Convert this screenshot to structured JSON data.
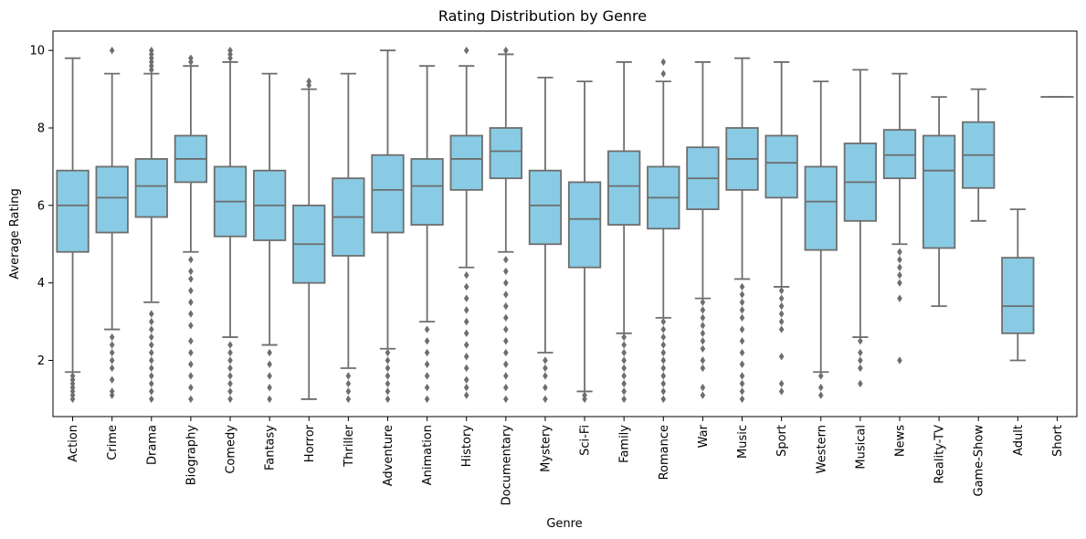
{
  "chart_data": {
    "type": "box",
    "title": "Rating Distribution by Genre",
    "xlabel": "Genre",
    "ylabel": "Average Rating",
    "ylim": [
      0.55,
      10.5
    ],
    "yticks": [
      2,
      4,
      6,
      8,
      10
    ],
    "grid": false,
    "box_color": "#89cbe4",
    "line_color": "#6e6e6e",
    "series": [
      {
        "category": "Action",
        "whisker_low": 1.7,
        "q1": 4.8,
        "median": 6.0,
        "q3": 6.9,
        "whisker_high": 9.8,
        "outliers": [
          1.0,
          1.1,
          1.2,
          1.3,
          1.4,
          1.5,
          1.6
        ]
      },
      {
        "category": "Crime",
        "whisker_low": 2.8,
        "q1": 5.3,
        "median": 6.2,
        "q3": 7.0,
        "whisker_high": 9.4,
        "outliers": [
          1.1,
          1.2,
          1.5,
          1.8,
          2.0,
          2.2,
          2.4,
          2.6,
          10.0
        ]
      },
      {
        "category": "Drama",
        "whisker_low": 3.5,
        "q1": 5.7,
        "median": 6.5,
        "q3": 7.2,
        "whisker_high": 9.4,
        "outliers": [
          1.0,
          1.2,
          1.4,
          1.6,
          1.8,
          2.0,
          2.2,
          2.4,
          2.6,
          2.8,
          3.0,
          3.2,
          9.5,
          9.6,
          9.7,
          9.8,
          9.9,
          10.0
        ]
      },
      {
        "category": "Biography",
        "whisker_low": 4.8,
        "q1": 6.6,
        "median": 7.2,
        "q3": 7.8,
        "whisker_high": 9.6,
        "outliers": [
          1.0,
          1.3,
          1.6,
          1.9,
          2.2,
          2.5,
          2.9,
          3.2,
          3.5,
          3.8,
          4.1,
          4.3,
          4.6,
          9.7,
          9.8
        ]
      },
      {
        "category": "Comedy",
        "whisker_low": 2.6,
        "q1": 5.2,
        "median": 6.1,
        "q3": 7.0,
        "whisker_high": 9.7,
        "outliers": [
          1.0,
          1.2,
          1.4,
          1.6,
          1.8,
          2.0,
          2.2,
          2.4,
          9.8,
          9.9,
          10.0
        ]
      },
      {
        "category": "Fantasy",
        "whisker_low": 2.4,
        "q1": 5.1,
        "median": 6.0,
        "q3": 6.9,
        "whisker_high": 9.4,
        "outliers": [
          1.0,
          1.3,
          1.6,
          1.9,
          2.2
        ]
      },
      {
        "category": "Horror",
        "whisker_low": 1.0,
        "q1": 4.0,
        "median": 5.0,
        "q3": 6.0,
        "whisker_high": 9.0,
        "outliers": [
          9.1,
          9.2
        ]
      },
      {
        "category": "Thriller",
        "whisker_low": 1.8,
        "q1": 4.7,
        "median": 5.7,
        "q3": 6.7,
        "whisker_high": 9.4,
        "outliers": [
          1.0,
          1.2,
          1.4,
          1.6
        ]
      },
      {
        "category": "Adventure",
        "whisker_low": 2.3,
        "q1": 5.3,
        "median": 6.4,
        "q3": 7.3,
        "whisker_high": 10.0,
        "outliers": [
          1.0,
          1.2,
          1.4,
          1.6,
          1.8,
          2.0,
          2.2
        ]
      },
      {
        "category": "Animation",
        "whisker_low": 3.0,
        "q1": 5.5,
        "median": 6.5,
        "q3": 7.2,
        "whisker_high": 9.6,
        "outliers": [
          1.0,
          1.3,
          1.6,
          1.9,
          2.2,
          2.5,
          2.8
        ]
      },
      {
        "category": "History",
        "whisker_low": 4.4,
        "q1": 6.4,
        "median": 7.2,
        "q3": 7.8,
        "whisker_high": 9.6,
        "outliers": [
          1.1,
          1.3,
          1.5,
          1.8,
          2.1,
          2.4,
          2.7,
          3.0,
          3.3,
          3.6,
          3.9,
          4.2,
          10.0
        ]
      },
      {
        "category": "Documentary",
        "whisker_low": 4.8,
        "q1": 6.7,
        "median": 7.4,
        "q3": 8.0,
        "whisker_high": 9.9,
        "outliers": [
          1.0,
          1.3,
          1.6,
          1.9,
          2.2,
          2.5,
          2.8,
          3.1,
          3.4,
          3.7,
          4.0,
          4.3,
          4.6,
          10.0
        ]
      },
      {
        "category": "Mystery",
        "whisker_low": 2.2,
        "q1": 5.0,
        "median": 6.0,
        "q3": 6.9,
        "whisker_high": 9.3,
        "outliers": [
          1.0,
          1.3,
          1.6,
          1.8,
          2.0
        ]
      },
      {
        "category": "Sci-Fi",
        "whisker_low": 1.2,
        "q1": 4.4,
        "median": 5.65,
        "q3": 6.6,
        "whisker_high": 9.2,
        "outliers": [
          1.0,
          1.1
        ]
      },
      {
        "category": "Family",
        "whisker_low": 2.7,
        "q1": 5.5,
        "median": 6.5,
        "q3": 7.4,
        "whisker_high": 9.7,
        "outliers": [
          1.0,
          1.2,
          1.4,
          1.6,
          1.8,
          2.0,
          2.2,
          2.4,
          2.6
        ]
      },
      {
        "category": "Romance",
        "whisker_low": 3.1,
        "q1": 5.4,
        "median": 6.2,
        "q3": 7.0,
        "whisker_high": 9.2,
        "outliers": [
          1.0,
          1.2,
          1.4,
          1.6,
          1.8,
          2.0,
          2.2,
          2.4,
          2.6,
          2.8,
          3.0,
          9.4,
          9.7
        ]
      },
      {
        "category": "War",
        "whisker_low": 3.6,
        "q1": 5.9,
        "median": 6.7,
        "q3": 7.5,
        "whisker_high": 9.7,
        "outliers": [
          1.1,
          1.3,
          1.8,
          2.0,
          2.3,
          2.5,
          2.7,
          2.9,
          3.1,
          3.3,
          3.5
        ]
      },
      {
        "category": "Music",
        "whisker_low": 4.1,
        "q1": 6.4,
        "median": 7.2,
        "q3": 8.0,
        "whisker_high": 9.8,
        "outliers": [
          1.0,
          1.2,
          1.4,
          1.6,
          1.9,
          2.2,
          2.5,
          2.8,
          3.1,
          3.3,
          3.5,
          3.7,
          3.9
        ]
      },
      {
        "category": "Sport",
        "whisker_low": 3.9,
        "q1": 6.2,
        "median": 7.1,
        "q3": 7.8,
        "whisker_high": 9.7,
        "outliers": [
          1.2,
          1.4,
          2.1,
          2.8,
          3.0,
          3.2,
          3.4,
          3.6,
          3.8
        ]
      },
      {
        "category": "Western",
        "whisker_low": 1.7,
        "q1": 4.85,
        "median": 6.1,
        "q3": 7.0,
        "whisker_high": 9.2,
        "outliers": [
          1.1,
          1.3,
          1.6
        ]
      },
      {
        "category": "Musical",
        "whisker_low": 2.6,
        "q1": 5.6,
        "median": 6.6,
        "q3": 7.6,
        "whisker_high": 9.5,
        "outliers": [
          1.4,
          1.8,
          2.0,
          2.2,
          2.5
        ]
      },
      {
        "category": "News",
        "whisker_low": 5.0,
        "q1": 6.7,
        "median": 7.3,
        "q3": 7.95,
        "whisker_high": 9.4,
        "outliers": [
          2.0,
          3.6,
          4.0,
          4.2,
          4.4,
          4.6,
          4.8
        ]
      },
      {
        "category": "Reality-TV",
        "whisker_low": 3.4,
        "q1": 4.9,
        "median": 6.9,
        "q3": 7.8,
        "whisker_high": 8.8,
        "outliers": []
      },
      {
        "category": "Game-Show",
        "whisker_low": 5.6,
        "q1": 6.45,
        "median": 7.3,
        "q3": 8.15,
        "whisker_high": 9.0,
        "outliers": []
      },
      {
        "category": "Adult",
        "whisker_low": 2.0,
        "q1": 2.7,
        "median": 3.4,
        "q3": 4.65,
        "whisker_high": 5.9,
        "outliers": []
      },
      {
        "category": "Short",
        "whisker_low": 8.8,
        "q1": 8.8,
        "median": 8.8,
        "q3": 8.8,
        "whisker_high": 8.8,
        "outliers": []
      }
    ]
  }
}
